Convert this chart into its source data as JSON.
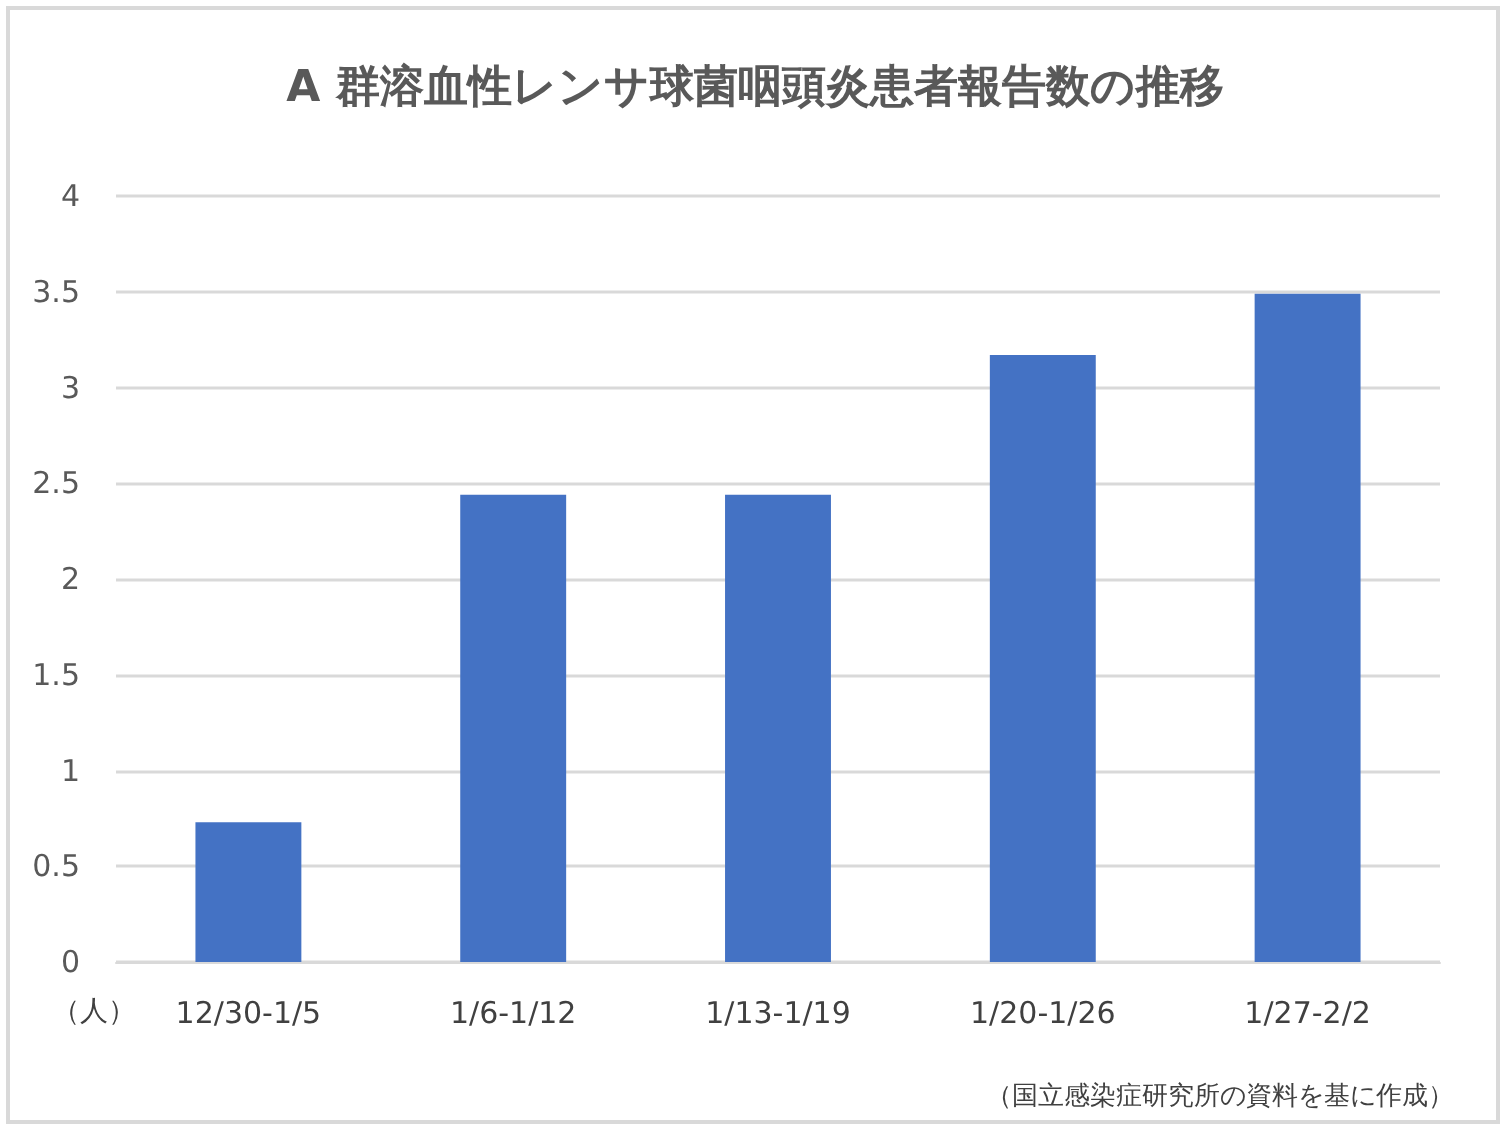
{
  "chart_data": {
    "type": "bar",
    "title": "A 群溶血性レンサ球菌咽頭炎患者報告数の推移",
    "ylabel": "（人）",
    "categories": [
      "12/30-1/5",
      "1/6-1/12",
      "1/13-1/19",
      "1/20-1/26",
      "1/27-2/2"
    ],
    "values": [
      0.73,
      2.44,
      2.44,
      3.17,
      3.49
    ],
    "color": "#4472c4",
    "ylim": [
      0,
      4
    ],
    "yticks": [
      0,
      0.5,
      1,
      1.5,
      2,
      2.5,
      3,
      3.5,
      4
    ],
    "grid": "y",
    "annotations": [
      "（国立感染症研究所の資料を基に作成）"
    ]
  }
}
